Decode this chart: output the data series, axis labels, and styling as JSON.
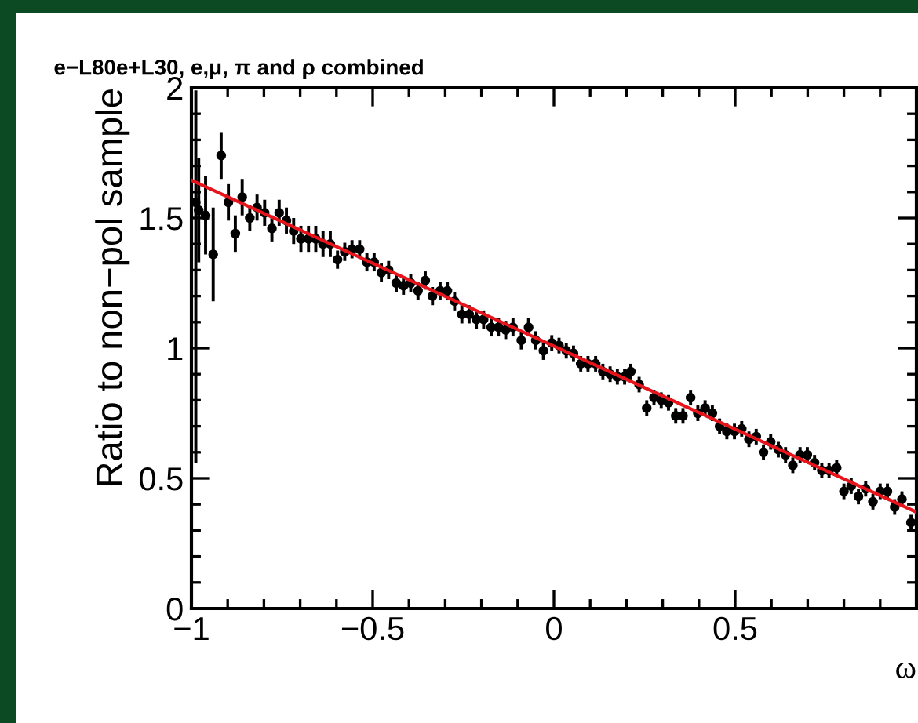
{
  "chart_data": {
    "type": "scatter",
    "title": "e−L80e+L30, e,μ, π and ρ combined",
    "xlabel": "ω",
    "ylabel": "Ratio to non−pol sample",
    "xlim": [
      -1,
      1
    ],
    "ylim": [
      0,
      2
    ],
    "xticks": [
      {
        "value": -1,
        "label": "−1"
      },
      {
        "value": -0.9,
        "label": null
      },
      {
        "value": -0.8,
        "label": null
      },
      {
        "value": -0.7,
        "label": null
      },
      {
        "value": -0.6,
        "label": null
      },
      {
        "value": -0.5,
        "label": "−0.5"
      },
      {
        "value": -0.4,
        "label": null
      },
      {
        "value": -0.3,
        "label": null
      },
      {
        "value": -0.2,
        "label": null
      },
      {
        "value": -0.1,
        "label": null
      },
      0,
      {
        "value": 0.1,
        "label": null
      },
      {
        "value": 0.2,
        "label": null
      },
      {
        "value": 0.3,
        "label": null
      },
      {
        "value": 0.4,
        "label": null
      },
      0.5,
      {
        "value": 0.6,
        "label": null
      },
      {
        "value": 0.7,
        "label": null
      },
      {
        "value": 0.8,
        "label": null
      },
      {
        "value": 0.9,
        "label": null
      },
      {
        "value": 1,
        "label": null
      }
    ],
    "yticks": [
      0,
      {
        "value": 0.1,
        "label": null
      },
      {
        "value": 0.2,
        "label": null
      },
      {
        "value": 0.3,
        "label": null
      },
      {
        "value": 0.4,
        "label": null
      },
      0.5,
      {
        "value": 0.6,
        "label": null
      },
      {
        "value": 0.7,
        "label": null
      },
      {
        "value": 0.8,
        "label": null
      },
      {
        "value": 0.9,
        "label": null
      },
      1,
      {
        "value": 1.1,
        "label": null
      },
      {
        "value": 1.2,
        "label": null
      },
      {
        "value": 1.3,
        "label": null
      },
      {
        "value": 1.4,
        "label": null
      },
      1.5,
      {
        "value": 1.6,
        "label": null
      },
      {
        "value": 1.7,
        "label": null
      },
      {
        "value": 1.8,
        "label": null
      },
      {
        "value": 1.9,
        "label": null
      },
      2
    ],
    "series": [
      {
        "color": "#000000",
        "marker": "circle",
        "x": [
          -0.988,
          -0.98,
          -0.961,
          -0.94,
          -0.918,
          -0.898,
          -0.879,
          -0.86,
          -0.839,
          -0.819,
          -0.798,
          -0.778,
          -0.758,
          -0.738,
          -0.718,
          -0.698,
          -0.677,
          -0.657,
          -0.637,
          -0.617,
          -0.597,
          -0.577,
          -0.557,
          -0.536,
          -0.516,
          -0.496,
          -0.476,
          -0.456,
          -0.435,
          -0.415,
          -0.395,
          -0.375,
          -0.355,
          -0.335,
          -0.314,
          -0.294,
          -0.274,
          -0.254,
          -0.234,
          -0.214,
          -0.194,
          -0.173,
          -0.153,
          -0.133,
          -0.113,
          -0.09,
          -0.07,
          -0.05,
          -0.029,
          -0.006,
          0.014,
          0.034,
          0.054,
          0.074,
          0.094,
          0.115,
          0.135,
          0.155,
          0.175,
          0.195,
          0.212,
          0.235,
          0.256,
          0.276,
          0.296,
          0.316,
          0.336,
          0.356,
          0.377,
          0.397,
          0.417,
          0.437,
          0.457,
          0.477,
          0.498,
          0.518,
          0.538,
          0.558,
          0.578,
          0.598,
          0.619,
          0.639,
          0.659,
          0.679,
          0.699,
          0.719,
          0.739,
          0.759,
          0.78,
          0.8,
          0.82,
          0.84,
          0.86,
          0.88,
          0.9,
          0.92,
          0.94,
          0.96,
          0.985
        ],
        "values": [
          1.56,
          1.53,
          1.51,
          1.36,
          1.74,
          1.56,
          1.44,
          1.58,
          1.5,
          1.54,
          1.52,
          1.46,
          1.52,
          1.49,
          1.45,
          1.42,
          1.42,
          1.42,
          1.4,
          1.4,
          1.34,
          1.37,
          1.38,
          1.38,
          1.33,
          1.33,
          1.29,
          1.3,
          1.25,
          1.24,
          1.25,
          1.22,
          1.26,
          1.2,
          1.22,
          1.22,
          1.18,
          1.13,
          1.13,
          1.11,
          1.11,
          1.08,
          1.08,
          1.07,
          1.08,
          1.03,
          1.08,
          1.03,
          0.99,
          1.02,
          1.01,
          0.99,
          0.98,
          0.94,
          0.94,
          0.94,
          0.91,
          0.9,
          0.89,
          0.89,
          0.91,
          0.86,
          0.77,
          0.81,
          0.8,
          0.79,
          0.74,
          0.74,
          0.81,
          0.75,
          0.77,
          0.75,
          0.7,
          0.68,
          0.68,
          0.69,
          0.65,
          0.66,
          0.6,
          0.64,
          0.61,
          0.59,
          0.55,
          0.59,
          0.59,
          0.56,
          0.53,
          0.53,
          0.54,
          0.45,
          0.47,
          0.43,
          0.46,
          0.41,
          0.45,
          0.45,
          0.39,
          0.42,
          0.33
        ],
        "errors": [
          [
            0.56,
            1.99
          ],
          0.2,
          0.15,
          0.18,
          0.09,
          0.07,
          0.07,
          0.07,
          0.05,
          0.05,
          0.05,
          0.05,
          0.05,
          0.05,
          0.05,
          0.05,
          0.05,
          0.05,
          0.05,
          0.05,
          0.035,
          0.035,
          0.035,
          0.035,
          0.035,
          0.035,
          0.035,
          0.035,
          0.035,
          0.035,
          0.035,
          0.035,
          0.035,
          0.035,
          0.035,
          0.035,
          0.035,
          0.035,
          0.035,
          0.035,
          0.035,
          0.035,
          0.035,
          0.035,
          0.035,
          0.035,
          0.035,
          0.035,
          0.035,
          0.03,
          0.03,
          0.03,
          0.03,
          0.03,
          0.03,
          0.03,
          0.03,
          0.03,
          0.03,
          0.03,
          0.03,
          0.03,
          0.03,
          0.03,
          0.03,
          0.03,
          0.03,
          0.03,
          0.03,
          0.03,
          0.03,
          0.03,
          0.03,
          0.03,
          0.03,
          0.03,
          0.03,
          0.03,
          0.03,
          0.03,
          0.03,
          0.03,
          0.03,
          0.03,
          0.03,
          0.03,
          0.03,
          0.03,
          0.03,
          0.03,
          0.03,
          0.03,
          0.03,
          0.03,
          0.03,
          0.03,
          0.03,
          0.03,
          0.03
        ]
      },
      {
        "type": "line",
        "color": "#e8141c",
        "x": [
          -1,
          1
        ],
        "values": [
          1.645,
          0.37
        ]
      }
    ]
  }
}
